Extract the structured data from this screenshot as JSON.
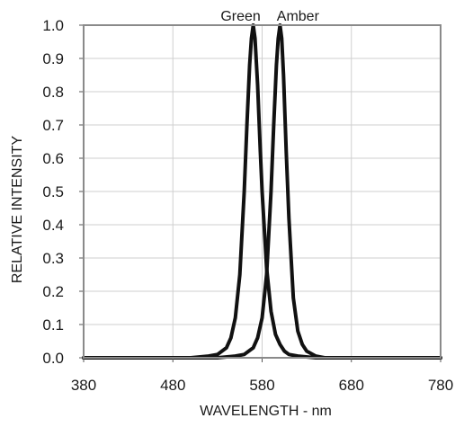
{
  "chart_data": {
    "type": "line",
    "title": "",
    "xlabel": "WAVELENGTH - nm",
    "ylabel": "RELATIVE INTENSITY",
    "xlim": [
      380,
      780
    ],
    "ylim": [
      0,
      1.0
    ],
    "x_ticks": [
      "380",
      "480",
      "580",
      "680",
      "780"
    ],
    "y_ticks": [
      "0.0",
      "0.1",
      "0.2",
      "0.3",
      "0.4",
      "0.5",
      "0.6",
      "0.7",
      "0.8",
      "0.9",
      "1.0"
    ],
    "grid": true,
    "series_labels": [
      "Green",
      "Amber"
    ],
    "series": [
      {
        "name": "Green",
        "color": "#111111",
        "x": [
          380,
          500,
          520,
          530,
          540,
          545,
          550,
          555,
          560,
          563,
          566,
          568,
          570,
          572,
          575,
          578,
          580,
          585,
          590,
          595,
          600,
          605,
          610,
          620,
          640,
          780
        ],
        "y": [
          0.0,
          0.0,
          0.005,
          0.01,
          0.03,
          0.06,
          0.12,
          0.25,
          0.5,
          0.7,
          0.88,
          0.96,
          1.0,
          0.96,
          0.82,
          0.62,
          0.5,
          0.27,
          0.14,
          0.07,
          0.04,
          0.02,
          0.01,
          0.005,
          0.0,
          0.0
        ]
      },
      {
        "name": "Amber",
        "color": "#111111",
        "x": [
          380,
          530,
          550,
          560,
          570,
          575,
          580,
          585,
          590,
          593,
          596,
          598,
          600,
          602,
          604,
          607,
          610,
          615,
          620,
          625,
          630,
          640,
          650,
          780
        ],
        "y": [
          0.0,
          0.0,
          0.005,
          0.01,
          0.03,
          0.06,
          0.12,
          0.25,
          0.5,
          0.7,
          0.88,
          0.96,
          1.0,
          0.96,
          0.85,
          0.62,
          0.42,
          0.18,
          0.08,
          0.04,
          0.02,
          0.005,
          0.0,
          0.0
        ]
      }
    ]
  }
}
